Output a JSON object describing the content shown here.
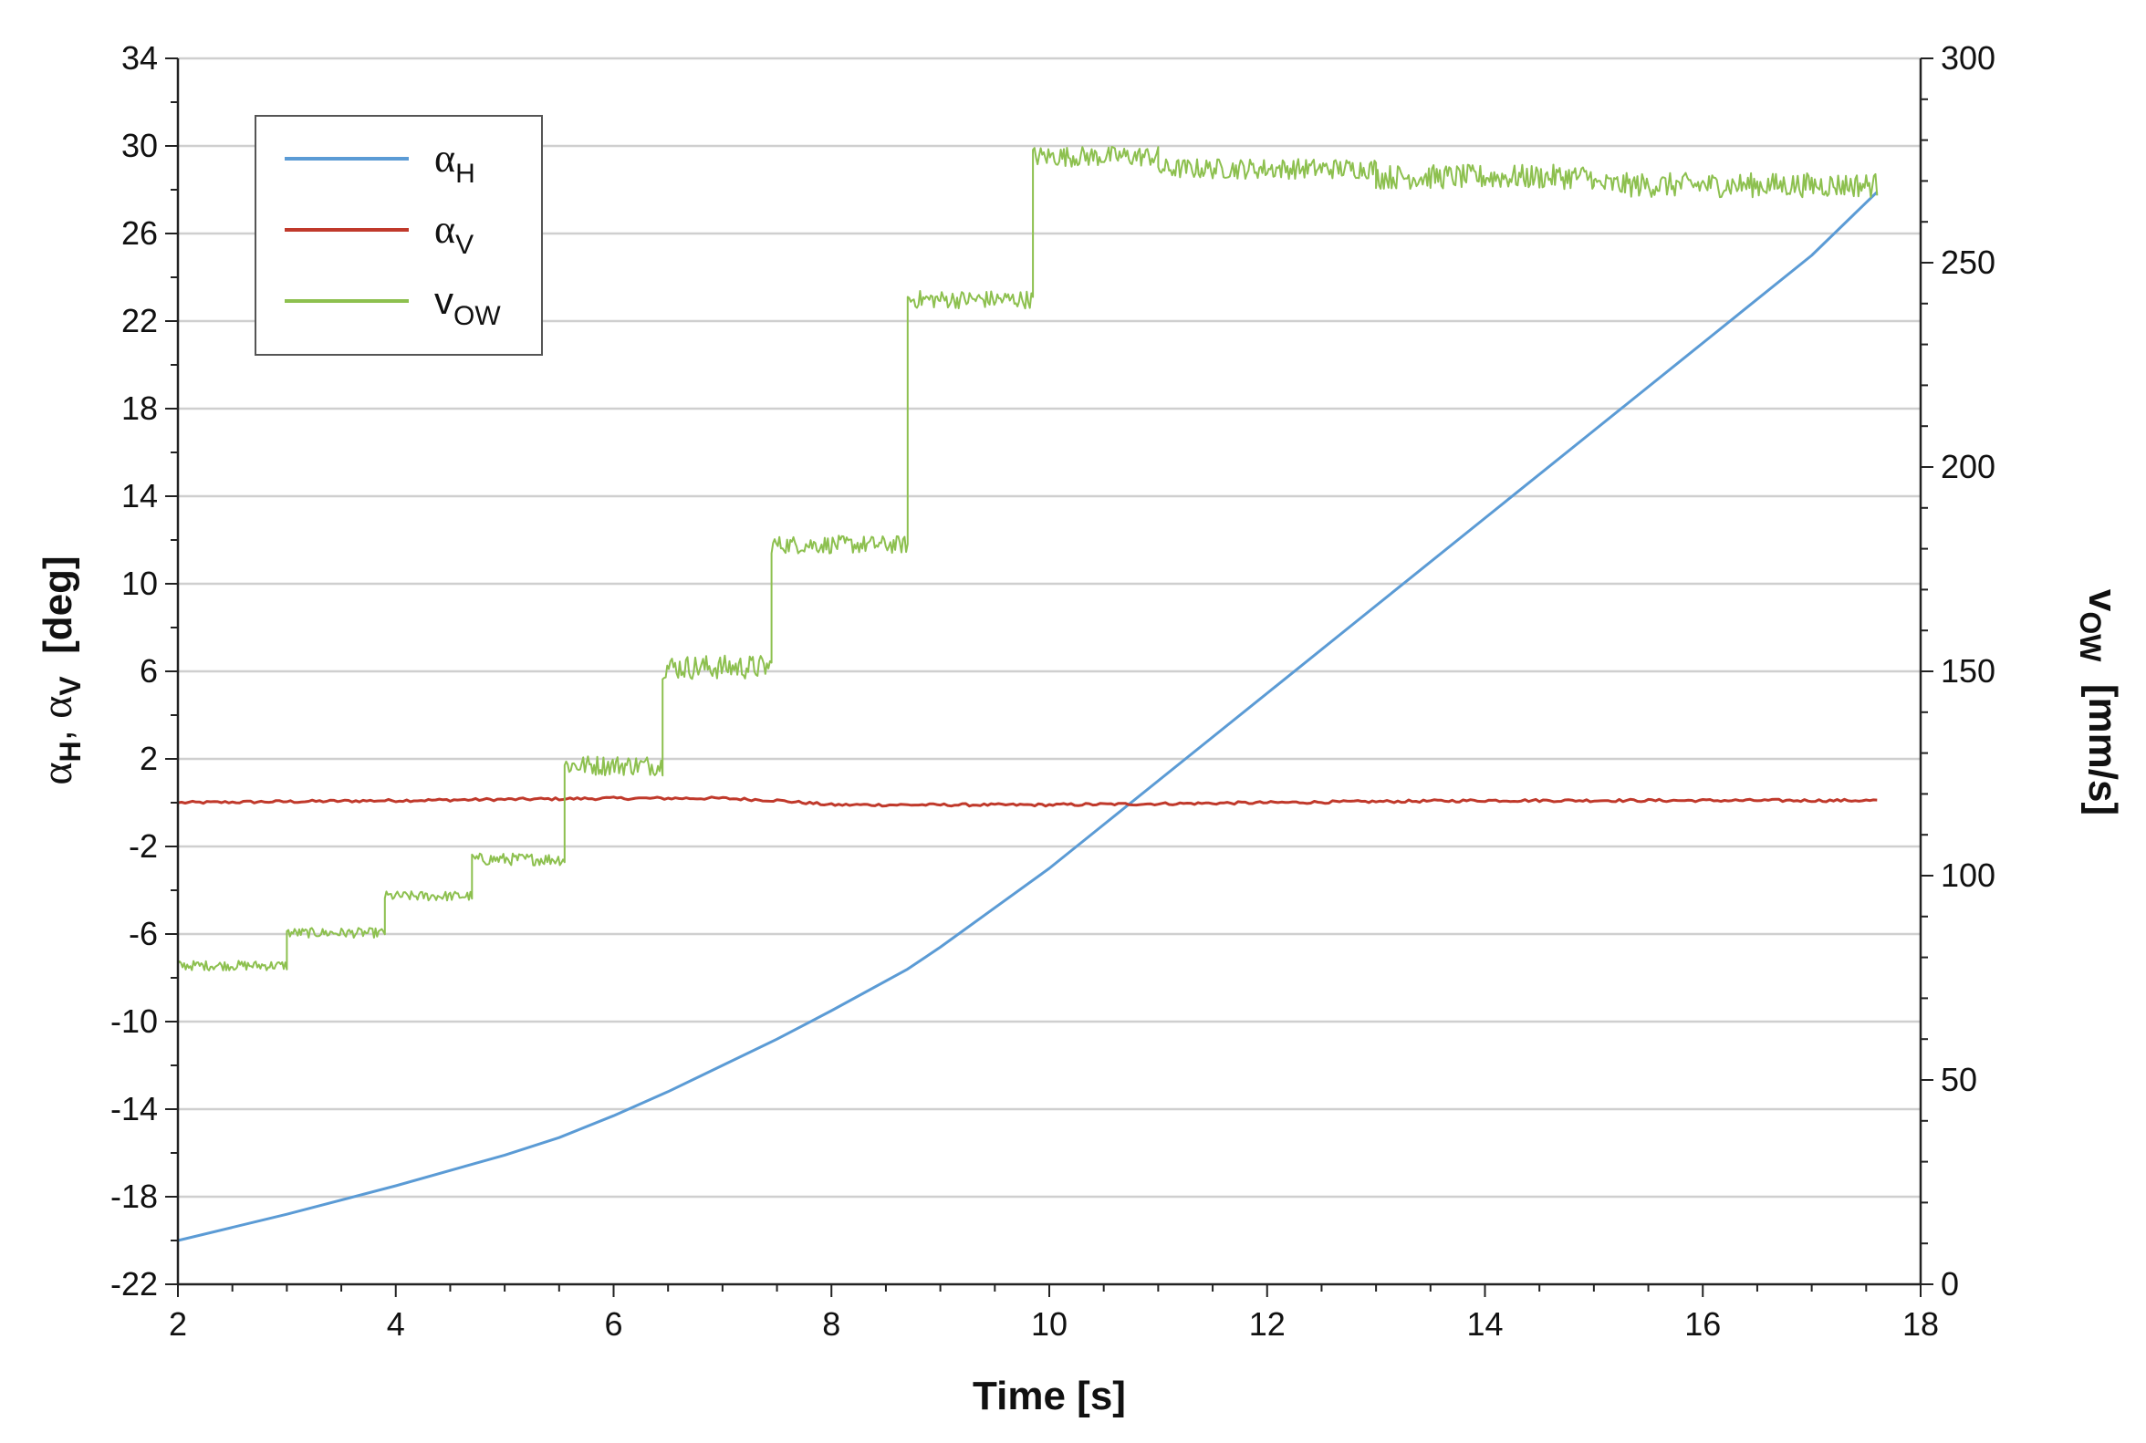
{
  "chart_data": {
    "type": "line",
    "title": "",
    "xlabel": "Time  [s]",
    "ylabel_left": {
      "base1": "α",
      "sub1": "H",
      "sep": ", ",
      "base2": "α",
      "sub2": "V",
      "unit": "  [deg]"
    },
    "ylabel_right": {
      "base": "v",
      "sub": "OW",
      "unit": "  [mm/s]"
    },
    "xlim": [
      2,
      18
    ],
    "xticks": [
      2,
      4,
      6,
      8,
      10,
      12,
      14,
      16,
      18
    ],
    "ylim_left": [
      -22,
      34
    ],
    "yticks_left": [
      -22,
      -18,
      -14,
      -10,
      -6,
      -2,
      2,
      6,
      10,
      14,
      18,
      22,
      26,
      30,
      34
    ],
    "ylim_right": [
      0,
      300
    ],
    "yticks_right": [
      0,
      50,
      100,
      150,
      200,
      250,
      300
    ],
    "grid": "horizontal",
    "legend": {
      "placement": "top-left",
      "entries": [
        {
          "base": "α",
          "sub": "H",
          "color": "#5b9bd5"
        },
        {
          "base": "α",
          "sub": "V",
          "color": "#c0392b"
        },
        {
          "base": "v",
          "sub": "OW",
          "color": "#8dc04f"
        }
      ]
    },
    "series": [
      {
        "name": "αH",
        "axis": "left",
        "color": "#5b9bd5",
        "x": [
          2.0,
          3.0,
          4.0,
          5.0,
          5.5,
          6.0,
          6.5,
          7.0,
          7.5,
          8.0,
          8.7,
          9.0,
          9.5,
          10.0,
          10.5,
          11.0,
          11.5,
          12.0,
          13.0,
          14.0,
          15.0,
          16.0,
          17.0,
          17.6
        ],
        "y": [
          -20.0,
          -18.8,
          -17.5,
          -16.1,
          -15.3,
          -14.3,
          -13.2,
          -12.0,
          -10.8,
          -9.5,
          -7.6,
          -6.6,
          -4.8,
          -3.0,
          -1.0,
          1.0,
          3.0,
          5.0,
          9.0,
          13.0,
          17.0,
          21.0,
          25.0,
          27.9
        ]
      },
      {
        "name": "αV",
        "axis": "left",
        "color": "#c0392b",
        "x": [
          2.0,
          6.0,
          7.0,
          7.5,
          8.0,
          10.0,
          12.0,
          14.0,
          16.0,
          17.6
        ],
        "y": [
          0.0,
          0.2,
          0.2,
          0.1,
          -0.1,
          -0.1,
          0.0,
          0.1,
          0.1,
          0.1
        ]
      },
      {
        "name": "vOW",
        "axis": "right",
        "color": "#8dc04f",
        "noise": true,
        "segments": [
          {
            "x0": 2.0,
            "x1": 3.0,
            "y": 78,
            "noise": 1.2
          },
          {
            "x0": 3.0,
            "x1": 3.9,
            "y": 86,
            "noise": 1.2
          },
          {
            "x0": 3.9,
            "x1": 4.7,
            "y": 95,
            "noise": 1.2
          },
          {
            "x0": 4.7,
            "x1": 5.55,
            "y": 104,
            "noise": 1.5
          },
          {
            "x0": 5.55,
            "x1": 6.45,
            "y": 127,
            "noise": 2.5
          },
          {
            "x0": 6.45,
            "x1": 7.45,
            "y": 151,
            "noise": 3.0
          },
          {
            "x0": 7.45,
            "x1": 8.7,
            "y": 181,
            "noise": 2.2
          },
          {
            "x0": 8.7,
            "x1": 9.85,
            "y": 241,
            "noise": 2.2
          },
          {
            "x0": 9.85,
            "x1": 11.0,
            "y": 276,
            "noise": 2.5
          },
          {
            "x0": 11.0,
            "x1": 13.0,
            "y": 273,
            "noise": 2.5
          },
          {
            "x0": 13.0,
            "x1": 15.0,
            "y": 271,
            "noise": 3.0
          },
          {
            "x0": 15.0,
            "x1": 17.6,
            "y": 269,
            "noise": 3.0
          }
        ]
      }
    ]
  }
}
